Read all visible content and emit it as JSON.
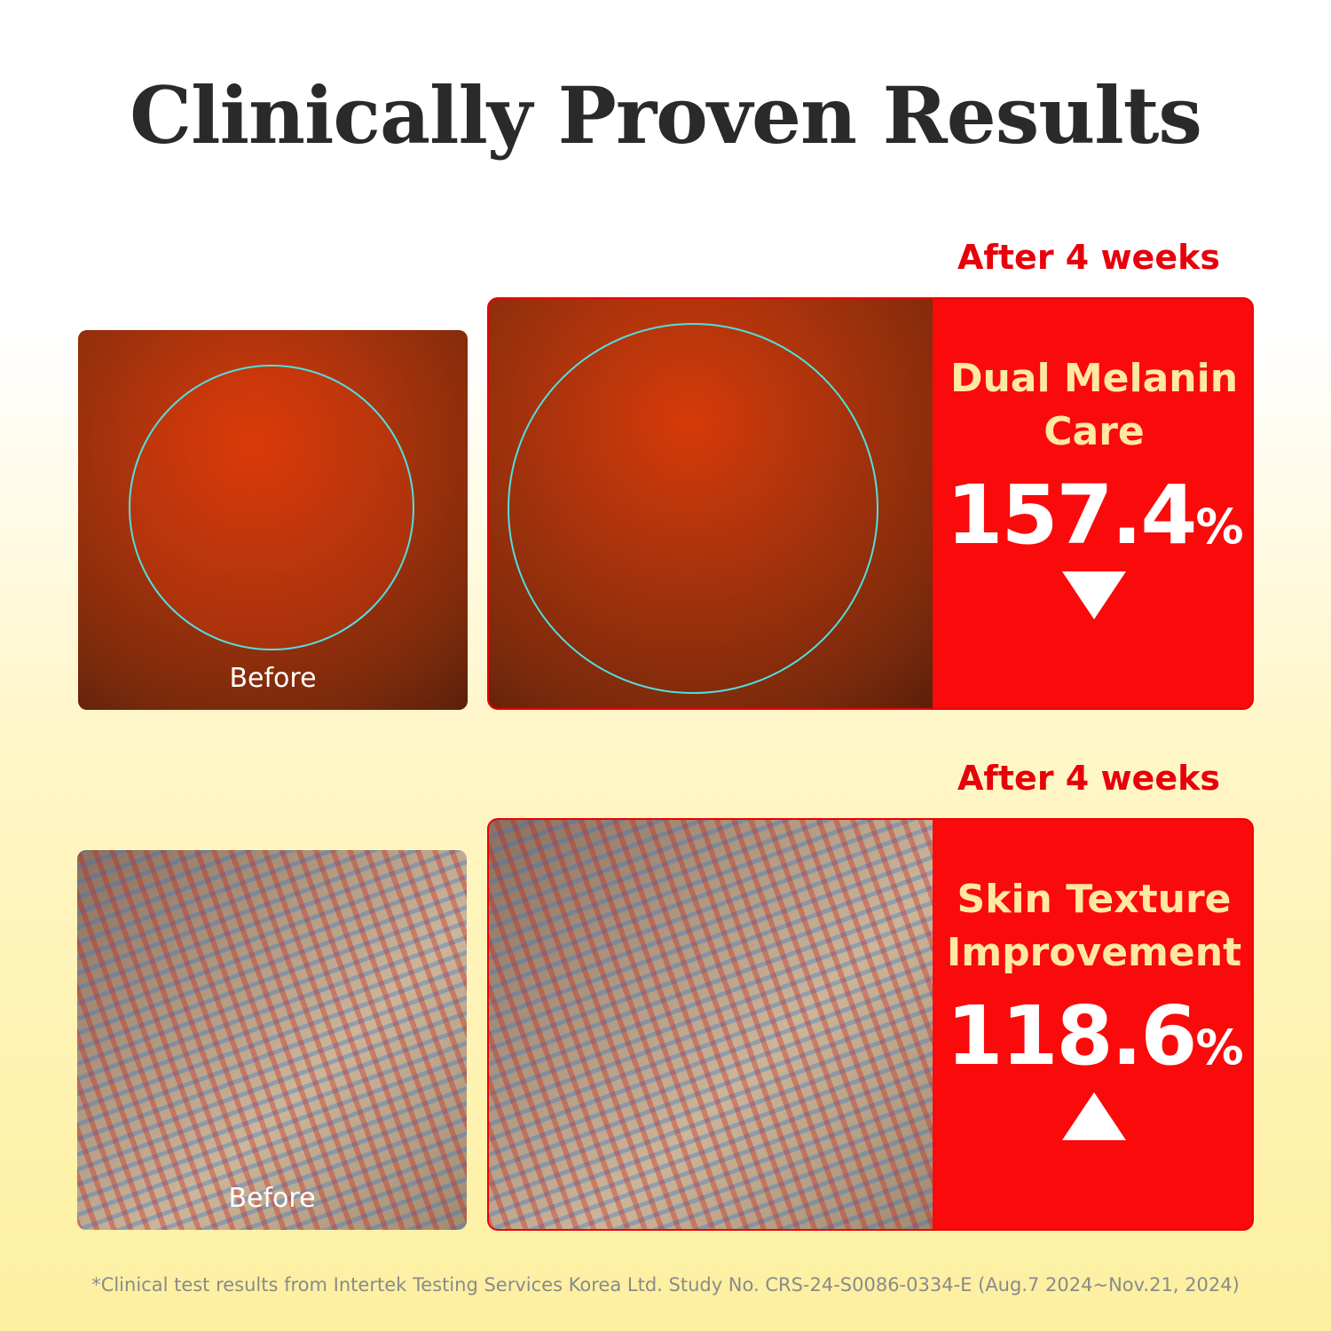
{
  "title": "Clinically Proven Results",
  "results": [
    {
      "after_label": "After 4 weeks",
      "before_label": "Before",
      "metric_line1": "Dual Melanin",
      "metric_line2": "Care",
      "value": "157.4",
      "unit": "%",
      "direction": "down"
    },
    {
      "after_label": "After 4 weeks",
      "before_label": "Before",
      "metric_line1": "Skin Texture",
      "metric_line2": "Improvement",
      "value": "118.6",
      "unit": "%",
      "direction": "up"
    }
  ],
  "colors": {
    "accent_red": "#fb0a0b",
    "metric_text": "#ffe9a0",
    "circle_outline": "#4fe0e0"
  },
  "footnote": "*Clinical test results from Intertek Testing Services Korea Ltd. Study No. CRS-24-S0086-0334-E (Aug.7 2024~Nov.21, 2024)"
}
